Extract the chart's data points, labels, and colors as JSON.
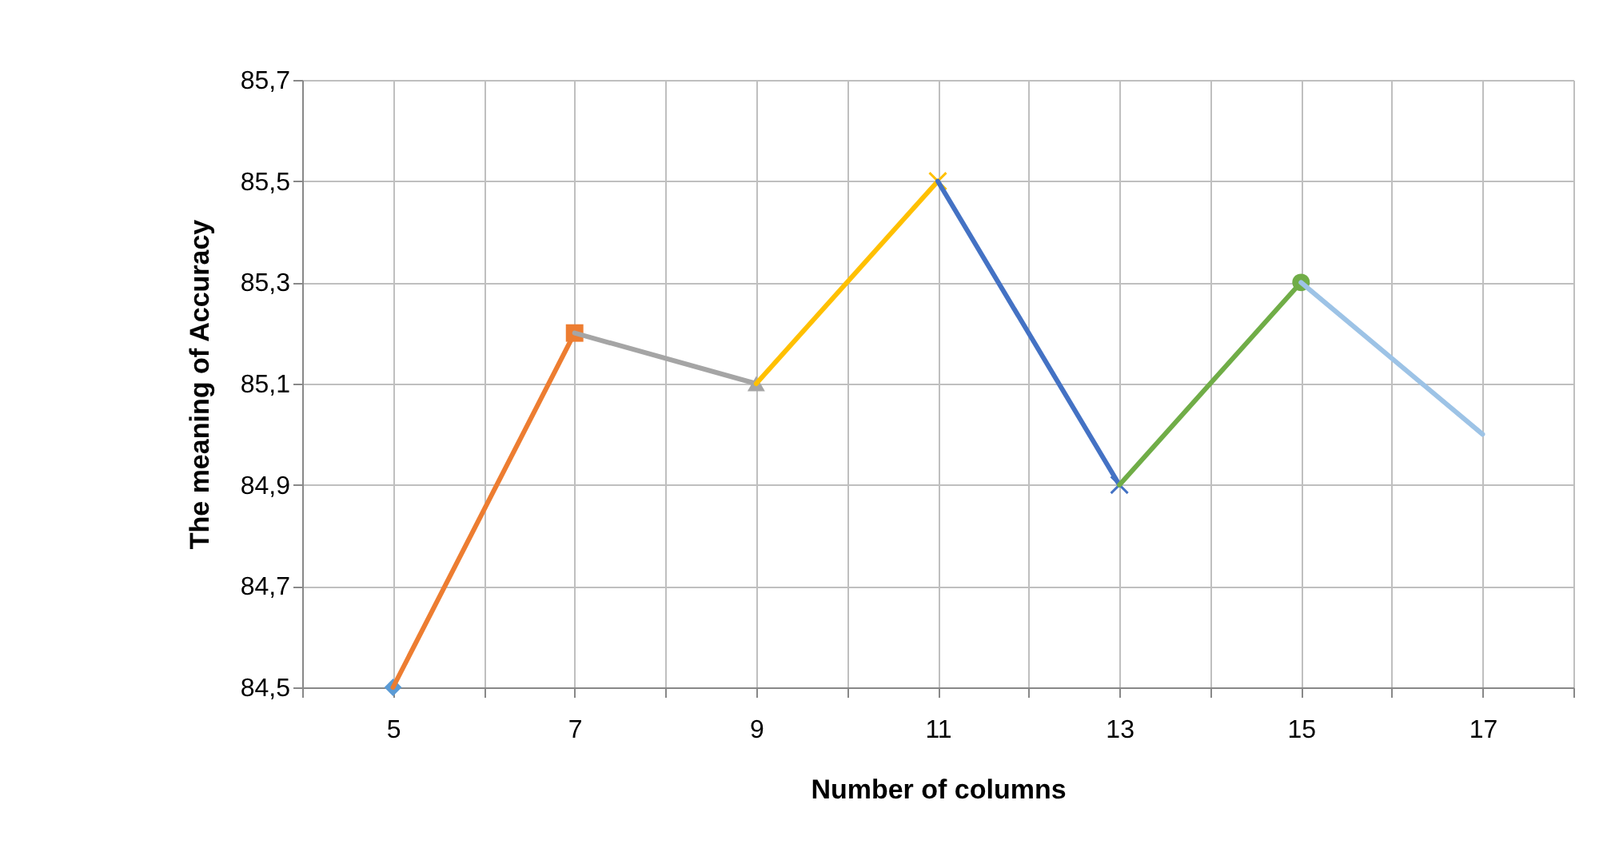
{
  "chart_data": {
    "type": "line",
    "xlabel": "Number of columns",
    "ylabel": "The meaning of Accuracy",
    "xlim": [
      4,
      18
    ],
    "xticks": [
      {
        "value": 4,
        "label": null
      },
      5,
      {
        "value": 6,
        "label": null
      },
      7,
      {
        "value": 8,
        "label": null
      },
      9,
      {
        "value": 10,
        "label": null
      },
      11,
      {
        "value": 12,
        "label": null
      },
      13,
      {
        "value": 14,
        "label": null
      },
      15,
      {
        "value": 16,
        "label": null
      },
      17,
      {
        "value": 18,
        "label": null
      }
    ],
    "ylim": [
      84.5,
      85.7
    ],
    "yticks": [
      {
        "value": 84.5,
        "label": "84,5"
      },
      {
        "value": 84.7,
        "label": "84,7"
      },
      {
        "value": 84.9,
        "label": "84,9"
      },
      {
        "value": 85.1,
        "label": "85,1"
      },
      {
        "value": 85.3,
        "label": "85,3"
      },
      {
        "value": 85.5,
        "label": "85,5"
      },
      {
        "value": 85.7,
        "label": "85,7"
      }
    ],
    "grid": true,
    "line_style": "solid",
    "series": [
      {
        "type": "scatter",
        "color": "#5b9bd5",
        "marker": "diamond",
        "x": [
          5
        ],
        "values": [
          84.5
        ]
      },
      {
        "color": "#ed7d31",
        "marker": "square",
        "x": [
          5,
          7
        ],
        "values": [
          84.5,
          85.2
        ]
      },
      {
        "color": "#a5a5a5",
        "marker": "triangle",
        "x": [
          7,
          9
        ],
        "values": [
          85.2,
          85.1
        ]
      },
      {
        "color": "#ffc000",
        "marker": "cross",
        "x": [
          9,
          11
        ],
        "values": [
          85.1,
          85.5
        ]
      },
      {
        "color": "#4472c4",
        "marker": "cross",
        "x": [
          11,
          13
        ],
        "values": [
          85.5,
          84.9
        ]
      },
      {
        "color": "#70ad47",
        "marker": "circle",
        "x": [
          13,
          15
        ],
        "values": [
          84.9,
          85.3
        ]
      },
      {
        "color": "#9dc3e6",
        "marker": "none",
        "x": [
          15,
          17
        ],
        "values": [
          85.3,
          85.0
        ]
      }
    ]
  }
}
